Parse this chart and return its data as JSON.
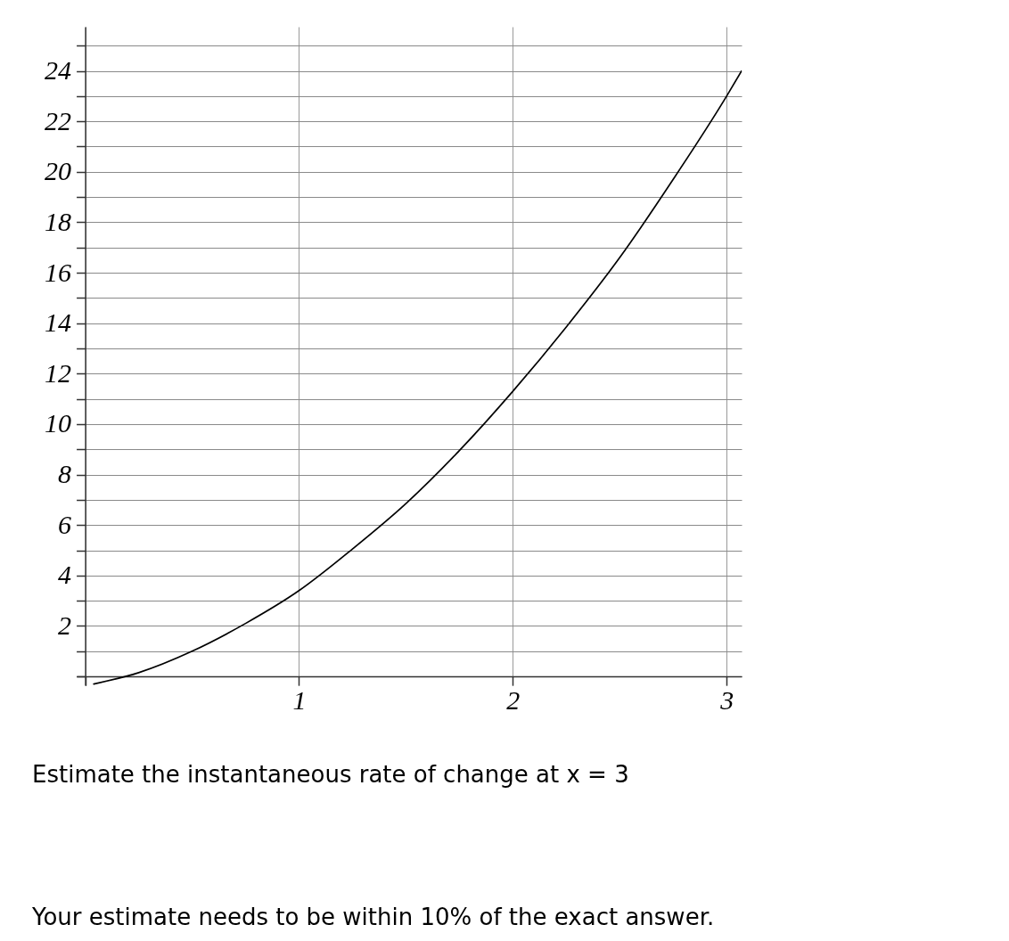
{
  "chart_data": {
    "type": "line",
    "x": [
      0.04,
      0.25,
      0.5,
      0.75,
      1.0,
      1.25,
      1.5,
      1.75,
      2.0,
      2.25,
      2.5,
      2.75,
      3.0,
      3.07
    ],
    "series": [
      {
        "color": "#000000",
        "values": [
          -0.3,
          0.15,
          1.0,
          2.1,
          3.4,
          5.05,
          6.85,
          8.95,
          11.3,
          13.85,
          16.6,
          19.7,
          23.0,
          24.0
        ]
      }
    ],
    "xlim": [
      -0.04,
      3.07
    ],
    "ylim": [
      -0.35,
      25.75
    ],
    "xticks": [
      {
        "value": 0,
        "label": null
      },
      1,
      2,
      3
    ],
    "yticks": [
      {
        "value": 0,
        "label": null
      },
      {
        "value": 1,
        "label": null
      },
      2,
      {
        "value": 3,
        "label": null
      },
      4,
      {
        "value": 5,
        "label": null
      },
      6,
      {
        "value": 7,
        "label": null
      },
      8,
      {
        "value": 9,
        "label": null
      },
      10,
      {
        "value": 11,
        "label": null
      },
      12,
      {
        "value": 13,
        "label": null
      },
      14,
      {
        "value": 15,
        "label": null
      },
      16,
      {
        "value": 17,
        "label": null
      },
      18,
      {
        "value": 19,
        "label": null
      },
      20,
      {
        "value": 21,
        "label": null
      },
      22,
      {
        "value": 23,
        "label": null
      },
      24,
      {
        "value": 25,
        "label": null
      }
    ],
    "grid": true,
    "annotations": [
      "Estimate the instantaneous rate of change at x = 3",
      "Your estimate needs to be within 10% of the exact answer."
    ]
  }
}
